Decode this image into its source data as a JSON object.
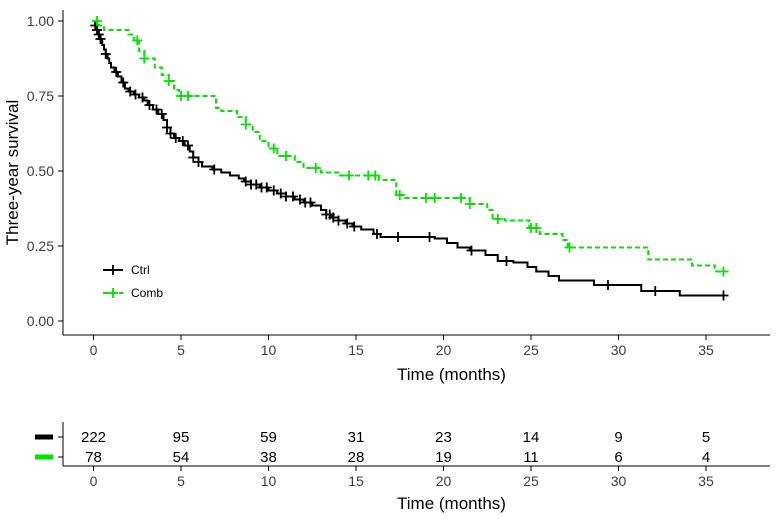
{
  "chart_data": {
    "type": "line",
    "subtype": "kaplan-meier",
    "title": "",
    "xlabel": "Time (months)",
    "ylabel": "Three-year survival",
    "xlim": [
      0,
      36
    ],
    "ylim": [
      0,
      1
    ],
    "x_ticks": [
      0,
      5,
      10,
      15,
      20,
      25,
      30,
      35
    ],
    "y_ticks": [
      "0.00",
      "0.25",
      "0.50",
      "0.75",
      "1.00"
    ],
    "legend_position": "bottom-left",
    "series": [
      {
        "name": "Ctrl",
        "color": "#000000",
        "line_style": "solid",
        "steps": [
          [
            0,
            1.0
          ],
          [
            0.1,
            0.985
          ],
          [
            0.2,
            0.97
          ],
          [
            0.3,
            0.955
          ],
          [
            0.4,
            0.94
          ],
          [
            0.5,
            0.92
          ],
          [
            0.6,
            0.905
          ],
          [
            0.7,
            0.89
          ],
          [
            0.8,
            0.875
          ],
          [
            0.9,
            0.86
          ],
          [
            1.0,
            0.845
          ],
          [
            1.2,
            0.83
          ],
          [
            1.4,
            0.815
          ],
          [
            1.6,
            0.795
          ],
          [
            1.8,
            0.775
          ],
          [
            2.0,
            0.765
          ],
          [
            2.3,
            0.755
          ],
          [
            2.6,
            0.745
          ],
          [
            2.9,
            0.735
          ],
          [
            3.1,
            0.72
          ],
          [
            3.4,
            0.705
          ],
          [
            3.7,
            0.69
          ],
          [
            4.0,
            0.67
          ],
          [
            4.2,
            0.645
          ],
          [
            4.4,
            0.625
          ],
          [
            4.6,
            0.61
          ],
          [
            4.9,
            0.6
          ],
          [
            5.2,
            0.585
          ],
          [
            5.5,
            0.565
          ],
          [
            5.7,
            0.545
          ],
          [
            6.0,
            0.53
          ],
          [
            6.2,
            0.515
          ],
          [
            6.8,
            0.505
          ],
          [
            7.3,
            0.495
          ],
          [
            7.8,
            0.485
          ],
          [
            8.3,
            0.475
          ],
          [
            8.6,
            0.465
          ],
          [
            9.0,
            0.455
          ],
          [
            9.5,
            0.445
          ],
          [
            10.0,
            0.435
          ],
          [
            10.5,
            0.425
          ],
          [
            11.0,
            0.415
          ],
          [
            11.5,
            0.405
          ],
          [
            12.0,
            0.395
          ],
          [
            12.5,
            0.385
          ],
          [
            13.0,
            0.37
          ],
          [
            13.3,
            0.355
          ],
          [
            13.6,
            0.345
          ],
          [
            14.0,
            0.335
          ],
          [
            14.4,
            0.325
          ],
          [
            14.8,
            0.315
          ],
          [
            15.3,
            0.305
          ],
          [
            16.0,
            0.29
          ],
          [
            16.4,
            0.28
          ],
          [
            17.5,
            0.28
          ],
          [
            19.5,
            0.275
          ],
          [
            20.2,
            0.26
          ],
          [
            20.8,
            0.245
          ],
          [
            21.5,
            0.235
          ],
          [
            22.4,
            0.22
          ],
          [
            23.1,
            0.2
          ],
          [
            24.0,
            0.195
          ],
          [
            24.8,
            0.18
          ],
          [
            25.3,
            0.165
          ],
          [
            26.0,
            0.15
          ],
          [
            26.6,
            0.135
          ],
          [
            28.0,
            0.135
          ],
          [
            28.6,
            0.12
          ],
          [
            30.6,
            0.12
          ],
          [
            31.3,
            0.1
          ],
          [
            33.5,
            0.085
          ],
          [
            36.0,
            0.085
          ]
        ],
        "censor_times": [
          0.1,
          0.2,
          0.3,
          0.4,
          0.7,
          1.3,
          1.7,
          2.1,
          2.4,
          2.8,
          3.2,
          3.6,
          3.9,
          4.2,
          4.4,
          4.7,
          5.1,
          5.4,
          5.7,
          6.0,
          6.9,
          8.7,
          9.0,
          9.3,
          9.6,
          9.9,
          10.3,
          10.7,
          11.0,
          11.4,
          11.8,
          12.1,
          12.4,
          13.3,
          13.5,
          13.7,
          14.0,
          14.5,
          14.9,
          16.2,
          17.4,
          19.2,
          21.6,
          23.6,
          29.4,
          32.1,
          36.0
        ]
      },
      {
        "name": "Comb",
        "color": "#00e400",
        "line_style": "dashed",
        "steps": [
          [
            0,
            1.0
          ],
          [
            0.3,
            0.985
          ],
          [
            0.6,
            0.97
          ],
          [
            2.0,
            0.955
          ],
          [
            2.3,
            0.935
          ],
          [
            2.6,
            0.9
          ],
          [
            2.9,
            0.875
          ],
          [
            3.5,
            0.845
          ],
          [
            3.9,
            0.82
          ],
          [
            4.3,
            0.8
          ],
          [
            4.6,
            0.77
          ],
          [
            4.9,
            0.75
          ],
          [
            7.0,
            0.71
          ],
          [
            7.3,
            0.7
          ],
          [
            8.2,
            0.68
          ],
          [
            8.7,
            0.655
          ],
          [
            9.1,
            0.63
          ],
          [
            9.5,
            0.6
          ],
          [
            10.0,
            0.575
          ],
          [
            10.5,
            0.55
          ],
          [
            11.5,
            0.53
          ],
          [
            12.0,
            0.51
          ],
          [
            13.0,
            0.495
          ],
          [
            14.0,
            0.485
          ],
          [
            16.3,
            0.47
          ],
          [
            17.3,
            0.42
          ],
          [
            17.8,
            0.41
          ],
          [
            21.5,
            0.39
          ],
          [
            22.5,
            0.37
          ],
          [
            22.8,
            0.34
          ],
          [
            23.5,
            0.335
          ],
          [
            24.9,
            0.31
          ],
          [
            25.5,
            0.29
          ],
          [
            26.8,
            0.27
          ],
          [
            27.1,
            0.245
          ],
          [
            31.7,
            0.205
          ],
          [
            34.2,
            0.185
          ],
          [
            35.5,
            0.165
          ],
          [
            36.0,
            0.165
          ]
        ],
        "censor_times": [
          0.2,
          2.5,
          2.9,
          4.3,
          5.0,
          5.4,
          8.7,
          10.3,
          11.0,
          12.7,
          14.6,
          15.7,
          16.1,
          17.5,
          19.0,
          19.5,
          21.0,
          21.5,
          23.1,
          25.0,
          25.3,
          27.2,
          36.0
        ]
      }
    ],
    "risk_table": {
      "xlabel": "Time (months)",
      "x_ticks": [
        0,
        5,
        10,
        15,
        20,
        25,
        30,
        35
      ],
      "rows": [
        {
          "name": "Ctrl",
          "color": "#000000",
          "counts": [
            222,
            95,
            59,
            31,
            23,
            14,
            9,
            5
          ]
        },
        {
          "name": "Comb",
          "color": "#00e400",
          "counts": [
            78,
            54,
            38,
            28,
            19,
            11,
            6,
            4
          ]
        }
      ]
    }
  }
}
